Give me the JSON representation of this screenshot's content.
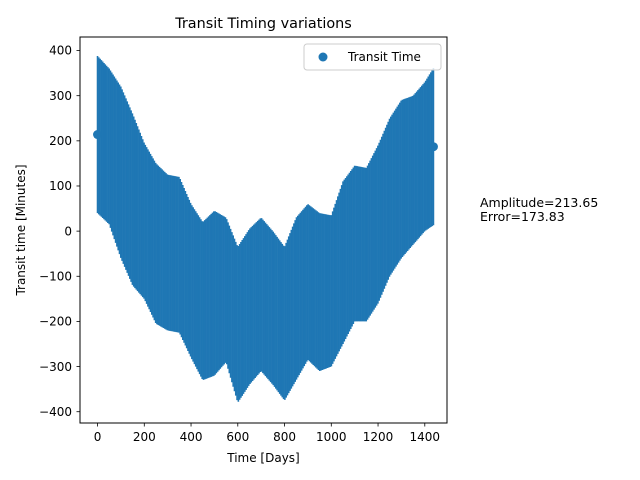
{
  "chart_data": {
    "type": "scatter",
    "title": "Transit Timing variations",
    "xlabel": "Time [Days]",
    "ylabel": "Transit time [Minutes]",
    "xlim": [
      -75,
      1495
    ],
    "ylim": [
      -425,
      430
    ],
    "x_ticks": [
      0,
      200,
      400,
      600,
      800,
      1000,
      1200,
      1400
    ],
    "y_ticks": [
      -400,
      -300,
      -200,
      -100,
      0,
      100,
      200,
      300,
      400
    ],
    "x_tick_labels": [
      "0",
      "200",
      "400",
      "600",
      "800",
      "1000",
      "1200",
      "1400"
    ],
    "y_tick_labels": [
      "−400",
      "−300",
      "−200",
      "−100",
      "0",
      "100",
      "200",
      "300",
      "400"
    ],
    "grid": false,
    "legend_position": "top-right",
    "series": [
      {
        "name": "Transit Time",
        "color": "#1f77b4",
        "marker": "circle",
        "points": [
          {
            "x": 0,
            "y": 214,
            "err": 174
          },
          {
            "x": 1437,
            "y": 187,
            "err": 174
          }
        ],
        "errorbar_envelope": {
          "x": [
            0,
            50,
            100,
            150,
            200,
            250,
            300,
            350,
            400,
            450,
            500,
            550,
            600,
            650,
            700,
            750,
            800,
            850,
            900,
            950,
            1000,
            1050,
            1100,
            1150,
            1200,
            1250,
            1300,
            1350,
            1400,
            1437
          ],
          "upper": [
            388,
            360,
            320,
            260,
            195,
            150,
            125,
            120,
            60,
            20,
            45,
            30,
            -35,
            5,
            30,
            0,
            -35,
            30,
            60,
            40,
            35,
            110,
            145,
            140,
            190,
            250,
            290,
            300,
            330,
            361
          ],
          "lower": [
            40,
            15,
            -60,
            -120,
            -150,
            -205,
            -220,
            -225,
            -280,
            -330,
            -320,
            -290,
            -380,
            -340,
            -310,
            -340,
            -375,
            -330,
            -285,
            -310,
            -300,
            -250,
            -200,
            -200,
            -160,
            -100,
            -60,
            -30,
            0,
            13
          ]
        }
      }
    ],
    "annotations": [
      "Amplitude=213.65",
      "Error=173.83"
    ]
  }
}
